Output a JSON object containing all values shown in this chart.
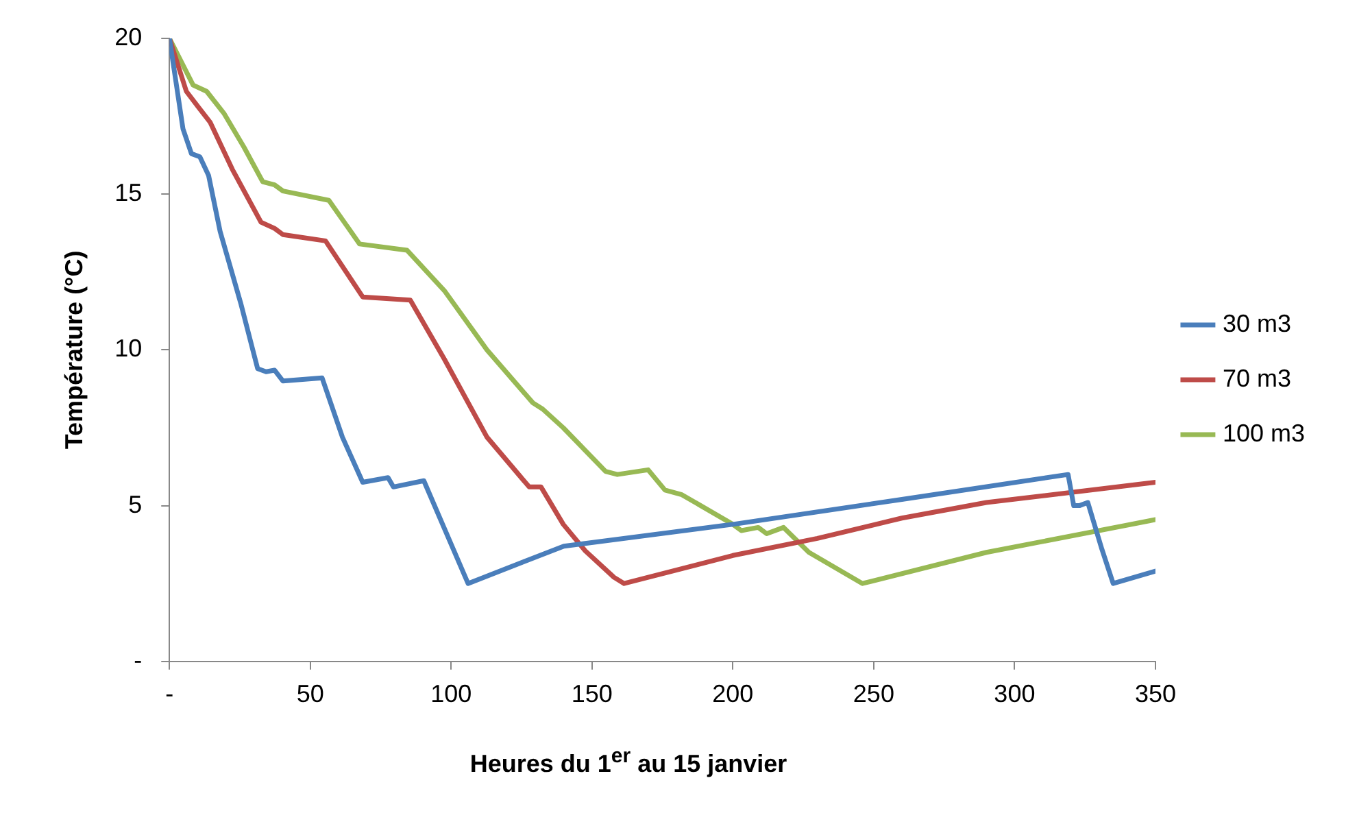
{
  "chart_data": {
    "type": "line",
    "xlabel": "Heures du 1$^{er}$ au 15 janvier",
    "ylabel": "Température (°C)",
    "xlim": [
      0,
      350
    ],
    "xticks": [
      {
        "value": 0,
        "label": "-"
      },
      50,
      100,
      150,
      200,
      250,
      300,
      350
    ],
    "ylim": [
      0,
      20
    ],
    "yticks": [
      {
        "value": 0,
        "label": "-"
      },
      5,
      10,
      15,
      20
    ],
    "grid": false,
    "legend": "right",
    "marker": "none",
    "line_style": "solid",
    "series": [
      {
        "name": "30 m3",
        "color": "#4a7ebb",
        "x": [
          0,
          4.8,
          7.8,
          10.8,
          13.9,
          18,
          25.3,
          31.3,
          34.3,
          37.3,
          40.3,
          54.2,
          61.4,
          68.6,
          77.6,
          79.5,
          90.3,
          106,
          140,
          200,
          260,
          319,
          321,
          323,
          326,
          331,
          335,
          350
        ],
        "values": [
          20,
          17.1,
          16.3,
          16.2,
          15.6,
          13.8,
          11.5,
          9.4,
          9.3,
          9.35,
          9,
          9.1,
          7.2,
          5.75,
          5.9,
          5.6,
          5.8,
          2.5,
          3.7,
          4.4,
          5.2,
          6,
          5,
          5,
          5.1,
          3.6,
          2.5,
          2.9
        ]
      },
      {
        "name": "70 m3",
        "color": "#be4b48",
        "x": [
          0,
          6,
          10.2,
          14.5,
          22.3,
          32.5,
          37.3,
          40.3,
          55.4,
          68.6,
          85.5,
          97.6,
          112.7,
          127.7,
          131.9,
          139.8,
          147.6,
          157.8,
          161.4,
          200,
          230,
          260,
          290,
          350
        ],
        "values": [
          20,
          18.3,
          17.8,
          17.3,
          15.8,
          14.1,
          13.9,
          13.7,
          13.5,
          11.7,
          11.6,
          9.7,
          7.2,
          5.6,
          5.6,
          4.4,
          3.55,
          2.7,
          2.5,
          3.4,
          3.95,
          4.6,
          5.1,
          5.75
        ]
      },
      {
        "name": "100 m3",
        "color": "#98b954",
        "x": [
          0,
          8.4,
          13.2,
          19.3,
          26.5,
          33.1,
          37.3,
          40.3,
          56.6,
          67.5,
          84.3,
          97.6,
          112.7,
          129,
          132.5,
          139.8,
          154.8,
          159,
          169.9,
          175.9,
          181.9,
          200,
          203,
          209,
          212,
          218,
          227,
          246,
          290,
          350
        ],
        "values": [
          20,
          18.5,
          18.3,
          17.6,
          16.5,
          15.4,
          15.3,
          15.1,
          14.8,
          13.4,
          13.2,
          11.9,
          10,
          8.3,
          8.1,
          7.5,
          6.1,
          6,
          6.15,
          5.5,
          5.35,
          4.4,
          4.2,
          4.3,
          4.1,
          4.3,
          3.5,
          2.5,
          3.5,
          4.55
        ]
      }
    ]
  }
}
